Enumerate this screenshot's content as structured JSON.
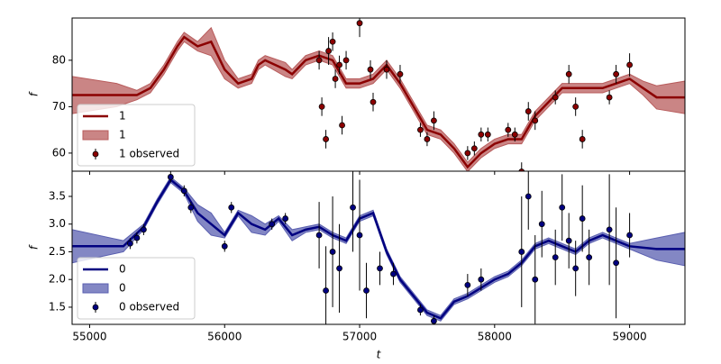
{
  "chart_data": [
    {
      "type": "line",
      "ylabel": "f",
      "ylim": [
        56.1,
        89.1
      ],
      "yticks": [
        60,
        70,
        80
      ],
      "xlim": [
        54870,
        59410
      ],
      "legend": "lower left",
      "x": [
        54870,
        55200,
        55350,
        55450,
        55550,
        55650,
        55700,
        55800,
        55900,
        56000,
        56100,
        56200,
        56250,
        56300,
        56450,
        56500,
        56600,
        56700,
        56800,
        56900,
        57000,
        57100,
        57200,
        57300,
        57400,
        57500,
        57600,
        57700,
        57800,
        57900,
        58000,
        58100,
        58200,
        58300,
        58400,
        58500,
        58600,
        58700,
        58800,
        58900,
        59000,
        59100,
        59200,
        59410
      ],
      "series": [
        {
          "name": "1",
          "color": "#8b0000",
          "values": [
            72.5,
            72.5,
            72.5,
            74,
            78,
            83,
            85,
            83,
            84,
            78,
            75,
            76,
            79,
            80,
            78,
            77,
            80,
            81,
            80,
            75,
            75,
            76,
            79,
            75,
            70,
            65,
            64,
            61,
            57,
            60,
            62,
            63,
            63,
            68,
            71,
            74,
            74,
            74,
            74,
            75,
            76,
            74,
            72,
            72
          ]
        },
        {
          "name": "1",
          "color": "#b85c5c",
          "lower": [
            68.5,
            70,
            71.5,
            73,
            77,
            82,
            84,
            82,
            81,
            76,
            74,
            75,
            78,
            79,
            76.5,
            76,
            79,
            80,
            79,
            74,
            74,
            75,
            78,
            74,
            69,
            64,
            63,
            60,
            56,
            59,
            61,
            62,
            62,
            67,
            70,
            73,
            73,
            73,
            73,
            74,
            75,
            72.5,
            69.5,
            68.5
          ],
          "upper": [
            76.5,
            75,
            73.5,
            75,
            79,
            84,
            86,
            84,
            87,
            80,
            76,
            77,
            80,
            81,
            79.5,
            78,
            81,
            82,
            81,
            76,
            76,
            77,
            80,
            76,
            71,
            66,
            65,
            62,
            58,
            61,
            63,
            64,
            64,
            69,
            72,
            75,
            75,
            75,
            75,
            76,
            77,
            75.5,
            74.5,
            75.5
          ]
        },
        {
          "name": "1 observed",
          "color": "#8b0000",
          "x": [
            56700,
            56720,
            56750,
            56770,
            56800,
            56820,
            56850,
            56870,
            56900,
            57000,
            57080,
            57100,
            57200,
            57300,
            57450,
            57500,
            57550,
            57800,
            57850,
            57900,
            57950,
            58100,
            58150,
            58200,
            58250,
            58300,
            58450,
            58550,
            58600,
            58650,
            58850,
            58900,
            59000
          ],
          "values": [
            80,
            70,
            63,
            82,
            84,
            76,
            79,
            66,
            80,
            88,
            78,
            71,
            78,
            77,
            65,
            63,
            67,
            60,
            61,
            64,
            64,
            65,
            64,
            56,
            69,
            67,
            72,
            77,
            70,
            63,
            72,
            77,
            79
          ],
          "errors": [
            2,
            2,
            2,
            3,
            2,
            2,
            2,
            2,
            2,
            3,
            2,
            2,
            2,
            2,
            1.5,
            1.5,
            2,
            1.5,
            1.5,
            1.5,
            1.5,
            1.5,
            1.5,
            2,
            2,
            2,
            1.5,
            2,
            2,
            2,
            1.5,
            2,
            2.5
          ]
        }
      ]
    },
    {
      "type": "line",
      "xlabel": "t",
      "ylabel": "f",
      "ylim": [
        1.19,
        3.955
      ],
      "yticks": [
        1.5,
        {
          "value": 2,
          "label": "2.0"
        },
        2.5,
        {
          "value": 3,
          "label": "3.0"
        },
        3.5
      ],
      "xlim": [
        54870,
        59410
      ],
      "xticks": [
        55000,
        56000,
        57000,
        58000,
        59000
      ],
      "legend": "lower left",
      "x": [
        54870,
        55250,
        55400,
        55500,
        55600,
        55700,
        55800,
        55900,
        56000,
        56100,
        56200,
        56300,
        56400,
        56500,
        56600,
        56700,
        56800,
        56900,
        57000,
        57100,
        57200,
        57300,
        57400,
        57500,
        57600,
        57700,
        57800,
        57900,
        58000,
        58100,
        58200,
        58300,
        58400,
        58500,
        58600,
        58700,
        58800,
        58900,
        59000,
        59200,
        59410
      ],
      "series": [
        {
          "name": "0",
          "color": "#000080",
          "values": [
            2.6,
            2.6,
            2.95,
            3.4,
            3.8,
            3.6,
            3.2,
            3.0,
            2.8,
            3.2,
            3.0,
            2.9,
            3.1,
            2.8,
            2.9,
            2.95,
            2.8,
            2.7,
            3.1,
            3.2,
            2.5,
            2.0,
            1.7,
            1.4,
            1.3,
            1.6,
            1.7,
            1.85,
            2.0,
            2.1,
            2.3,
            2.6,
            2.7,
            2.6,
            2.5,
            2.7,
            2.8,
            2.7,
            2.6,
            2.55,
            2.55
          ]
        },
        {
          "name": "0",
          "color": "#5a5fb0",
          "lower": [
            2.3,
            2.5,
            2.9,
            3.35,
            3.75,
            3.55,
            3.05,
            2.8,
            2.75,
            3.15,
            2.85,
            2.8,
            3.05,
            2.7,
            2.85,
            2.9,
            2.75,
            2.65,
            3.05,
            3.15,
            2.45,
            1.95,
            1.65,
            1.35,
            1.25,
            1.55,
            1.65,
            1.8,
            1.95,
            2.05,
            2.25,
            2.55,
            2.65,
            2.55,
            2.45,
            2.65,
            2.75,
            2.65,
            2.55,
            2.35,
            2.25
          ],
          "upper": [
            2.9,
            2.7,
            3.0,
            3.45,
            3.85,
            3.65,
            3.35,
            3.2,
            2.85,
            3.25,
            3.15,
            3.0,
            3.15,
            2.9,
            2.95,
            3.0,
            2.85,
            2.75,
            3.15,
            3.25,
            2.55,
            2.05,
            1.75,
            1.45,
            1.35,
            1.65,
            1.75,
            1.9,
            2.05,
            2.15,
            2.35,
            2.65,
            2.75,
            2.65,
            2.55,
            2.75,
            2.85,
            2.75,
            2.65,
            2.75,
            2.85
          ]
        },
        {
          "name": "0 observed",
          "color": "#000080",
          "x": [
            55300,
            55350,
            55400,
            55600,
            55700,
            55750,
            56000,
            56050,
            56350,
            56450,
            56700,
            56750,
            56800,
            56850,
            56950,
            57000,
            57050,
            57150,
            57250,
            57450,
            57550,
            57800,
            57900,
            58200,
            58250,
            58300,
            58350,
            58450,
            58500,
            58550,
            58600,
            58650,
            58700,
            58850,
            58900,
            59000
          ],
          "values": [
            2.65,
            2.75,
            2.9,
            3.85,
            3.6,
            3.3,
            2.6,
            3.3,
            3.0,
            3.1,
            2.8,
            1.8,
            2.5,
            2.2,
            3.3,
            2.8,
            1.8,
            2.2,
            2.1,
            1.45,
            1.25,
            1.9,
            2.0,
            2.5,
            3.5,
            2.0,
            3.0,
            2.4,
            3.3,
            2.7,
            2.2,
            3.1,
            2.4,
            2.9,
            2.3,
            2.8
          ],
          "errors": [
            0.1,
            0.1,
            0.1,
            0.1,
            0.1,
            0.1,
            0.1,
            0.1,
            0.1,
            0.1,
            0.6,
            0.8,
            1,
            0.8,
            0.8,
            1,
            0.5,
            0.3,
            0.2,
            0.1,
            0.1,
            0.2,
            0.2,
            1,
            0.6,
            0.8,
            0.6,
            0.5,
            0.6,
            0.5,
            0.5,
            0.6,
            0.5,
            1,
            1,
            0.4
          ]
        }
      ]
    }
  ]
}
